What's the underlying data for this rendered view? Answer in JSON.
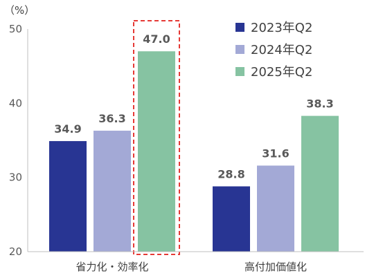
{
  "unit_label": "（%）",
  "chart_data": {
    "type": "bar",
    "categories": [
      "省力化・効率化",
      "高付加価値化"
    ],
    "series": [
      {
        "name": "2023年Q2",
        "color": "#283593",
        "values": [
          34.9,
          28.8
        ]
      },
      {
        "name": "2024年Q2",
        "color": "#a3a9d6",
        "values": [
          36.3,
          31.6
        ]
      },
      {
        "name": "2025年Q2",
        "color": "#86c3a2",
        "values": [
          47.0,
          38.3
        ]
      }
    ],
    "value_labels": [
      [
        "34.9",
        "28.8"
      ],
      [
        "36.3",
        "31.6"
      ],
      [
        "47.0",
        "38.3"
      ]
    ],
    "yticks": [
      "20",
      "30",
      "40",
      "50"
    ],
    "ylim": [
      20,
      50
    ],
    "legend_position": "top-right",
    "highlight": {
      "series": 2,
      "category": 0,
      "style": "dashed-red-box",
      "color": "#e53935"
    },
    "grid": false
  }
}
